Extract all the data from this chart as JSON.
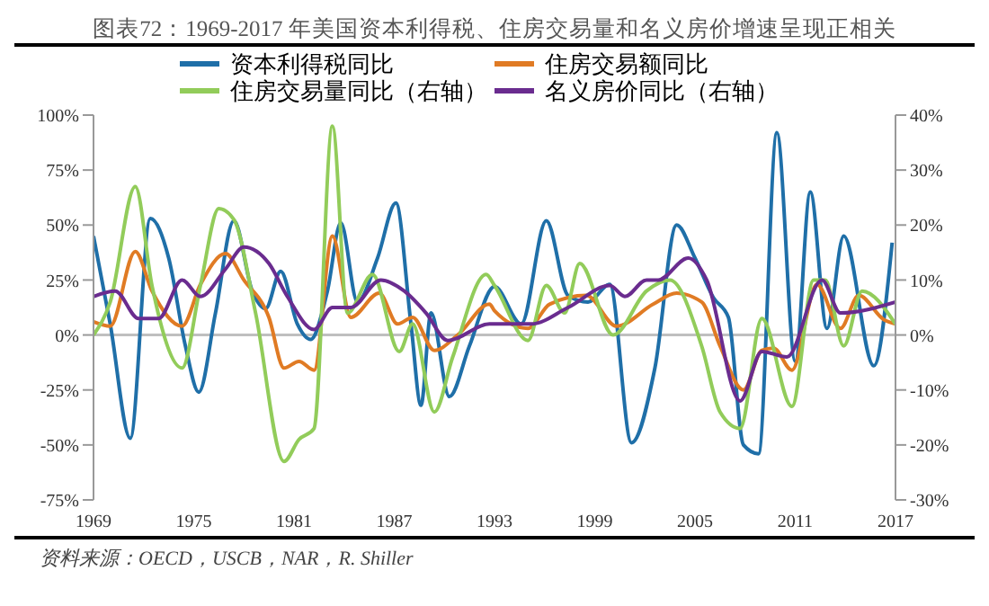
{
  "chart_data": {
    "type": "line",
    "title": "图表72：1969-2017 年美国资本利得税、住房交易量和名义房价增速呈现正相关",
    "xlim": [
      1969,
      2017
    ],
    "xticks": [
      1969,
      1975,
      1981,
      1987,
      1993,
      1999,
      2005,
      2011,
      2017
    ],
    "ylim": [
      -75,
      100
    ],
    "yticks": [
      {
        "value": -75,
        "label": "-75%"
      },
      {
        "value": -50,
        "label": "-50%"
      },
      {
        "value": -25,
        "label": "-25%"
      },
      {
        "value": 0,
        "label": "0%"
      },
      {
        "value": 25,
        "label": "25%"
      },
      {
        "value": 50,
        "label": "50%"
      },
      {
        "value": 75,
        "label": "75%"
      },
      {
        "value": 100,
        "label": "100%"
      }
    ],
    "y2lim": [
      -30,
      40
    ],
    "y2ticks": [
      {
        "value": -30,
        "label": "-30%"
      },
      {
        "value": -20,
        "label": "-20%"
      },
      {
        "value": -10,
        "label": "-10%"
      },
      {
        "value": 0,
        "label": "0%"
      },
      {
        "value": 10,
        "label": "10%"
      },
      {
        "value": 20,
        "label": "20%"
      },
      {
        "value": 30,
        "label": "30%"
      },
      {
        "value": 40,
        "label": "40%"
      }
    ],
    "legend": "top",
    "line_style": "solid",
    "ref_lines": [
      {
        "axis": "y",
        "value": 0,
        "color": "#bfbfbf"
      }
    ],
    "series": [
      {
        "name": "资本利得税同比",
        "color": "#1f6fa8",
        "x": [
          1969,
          1970,
          1971.2,
          1972.4,
          1973.5,
          1974.5,
          1975.3,
          1976.3,
          1977.4,
          1978.5,
          1979.3,
          1980.2,
          1981.2,
          1982,
          1983,
          1983.8,
          1984.8,
          1986,
          1987.1,
          1988,
          1988.6,
          1989.2,
          1990.3,
          1991.5,
          1993,
          1994.6,
          1996.1,
          1997.4,
          1998.6,
          1999.9,
          2001.2,
          2002.6,
          2003.9,
          2005,
          2006.1,
          2007,
          2007.9,
          2008.8,
          2009.9,
          2011,
          2011.9,
          2012.9,
          2013.9,
          2015.7,
          2016.8
        ],
        "values": [
          45,
          5,
          -47,
          53,
          35,
          -5,
          -26,
          10,
          52,
          20,
          12,
          29,
          5,
          -2,
          20,
          51,
          15,
          35,
          60,
          5,
          -32,
          10,
          -28,
          -5,
          22,
          5,
          52,
          18,
          15,
          23,
          -49,
          -15,
          50,
          35,
          17,
          8,
          -50,
          -54,
          92,
          -12,
          65,
          3,
          45,
          -14,
          42
        ]
      },
      {
        "name": "住房交易额同比",
        "color": "#e07b24",
        "x": [
          1969,
          1970,
          1971.5,
          1972.5,
          1974.3,
          1975.4,
          1976.9,
          1978,
          1979.5,
          1980.4,
          1981.3,
          1982.2,
          1983.3,
          1984.4,
          1986.1,
          1987.2,
          1988.1,
          1989.4,
          1990.8,
          1992.7,
          1993,
          1995,
          1996.3,
          1998.5,
          2000.3,
          2002.5,
          2003.9,
          2005.4,
          2006.5,
          2007.9,
          2009,
          2009.7,
          2010.8,
          2012.3,
          2013.7,
          2014.8,
          2016.3,
          2017
        ],
        "values": [
          6,
          4,
          38,
          20,
          4,
          23,
          37,
          25,
          8,
          -15,
          -12,
          -16,
          45,
          8,
          19,
          5,
          8,
          -7,
          0,
          14,
          11,
          3,
          14,
          18,
          4,
          14,
          19,
          15,
          -5,
          -25,
          -7,
          -6,
          -16,
          23,
          3,
          18,
          7,
          5
        ]
      },
      {
        "name": "住房交易量同比（右轴）",
        "color": "#92cc5a",
        "axis": "y2",
        "x": [
          1969,
          1970,
          1971.5,
          1972.5,
          1974.3,
          1975.4,
          1976.5,
          1977.4,
          1978.7,
          1980.4,
          1981.3,
          1982.2,
          1983.3,
          1984.2,
          1985.7,
          1987.3,
          1988.1,
          1989.4,
          1990.5,
          1992.5,
          1993,
          1995,
          1996.1,
          1997.2,
          1998.1,
          2000.1,
          2002.1,
          2003.5,
          2005.4,
          2006.5,
          2007.7,
          2009,
          2010.8,
          2012.1,
          2012.8,
          2013.9,
          2015,
          2017
        ],
        "values": [
          0,
          6,
          27,
          9,
          -6,
          9,
          23,
          21,
          4,
          -23,
          -19,
          -17,
          38,
          4,
          11,
          -3,
          2,
          -14,
          -4,
          11,
          9,
          -1,
          9,
          4,
          13,
          0,
          8,
          10,
          -2,
          -14,
          -17,
          3,
          -13,
          10,
          10,
          -2,
          8,
          2
        ]
      },
      {
        "name": "名义房价同比（右轴）",
        "color": "#6a2c8f",
        "axis": "y2",
        "x": [
          1969,
          1970.3,
          1971.7,
          1972.9,
          1974.3,
          1975.4,
          1976.9,
          1978,
          1979.5,
          1980.6,
          1982.2,
          1983.3,
          1984.4,
          1986.2,
          1987.6,
          1988.9,
          1990.2,
          1992.7,
          1995.2,
          1997.4,
          1999.9,
          2000.8,
          2002.1,
          2002.8,
          2004.6,
          2005.7,
          2007.7,
          2009,
          2010.5,
          2012.6,
          2013.7,
          2017
        ],
        "values": [
          7,
          8,
          3,
          3,
          10,
          7,
          12,
          16,
          13,
          7,
          1,
          5,
          5,
          10,
          8,
          4,
          -1,
          2,
          2,
          5,
          9,
          7,
          10,
          10,
          14,
          10,
          -12,
          -3,
          -4,
          10,
          4,
          6
        ]
      }
    ],
    "annotations": [
      "资料来源：OECD，USCB，NAR，R. Shiller"
    ]
  }
}
